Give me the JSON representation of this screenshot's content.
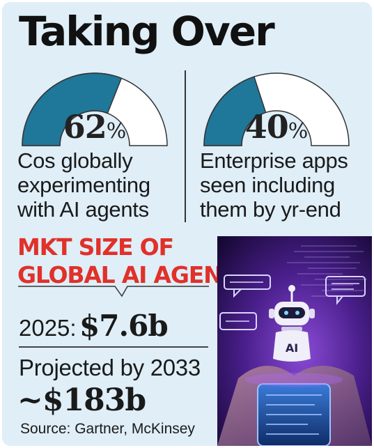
{
  "title": "Taking Over",
  "chart_data": [
    {
      "type": "gauge",
      "value": 62,
      "label": "62",
      "unit": "%",
      "caption": "Cos globally\nexperimenting\nwith AI agents"
    },
    {
      "type": "gauge",
      "value": 40,
      "label": "40",
      "unit": "%",
      "caption": "Enterprise apps\nseen including\nthem by yr-end"
    },
    {
      "type": "table",
      "title": "MKT SIZE OF\nGLOBAL AI AGENTS",
      "rows": [
        {
          "label": "2025:",
          "value": "$7.6b"
        },
        {
          "label": "Projected by 2033",
          "value": "~$183b"
        }
      ]
    }
  ],
  "source": "Source: Gartner, McKinsey",
  "photo": {
    "badge": "AI"
  },
  "colors": {
    "background": "#dfeef7",
    "gauge_fill": "#1f7799",
    "gauge_empty": "#ffffff",
    "accent_red": "#e0312a"
  }
}
